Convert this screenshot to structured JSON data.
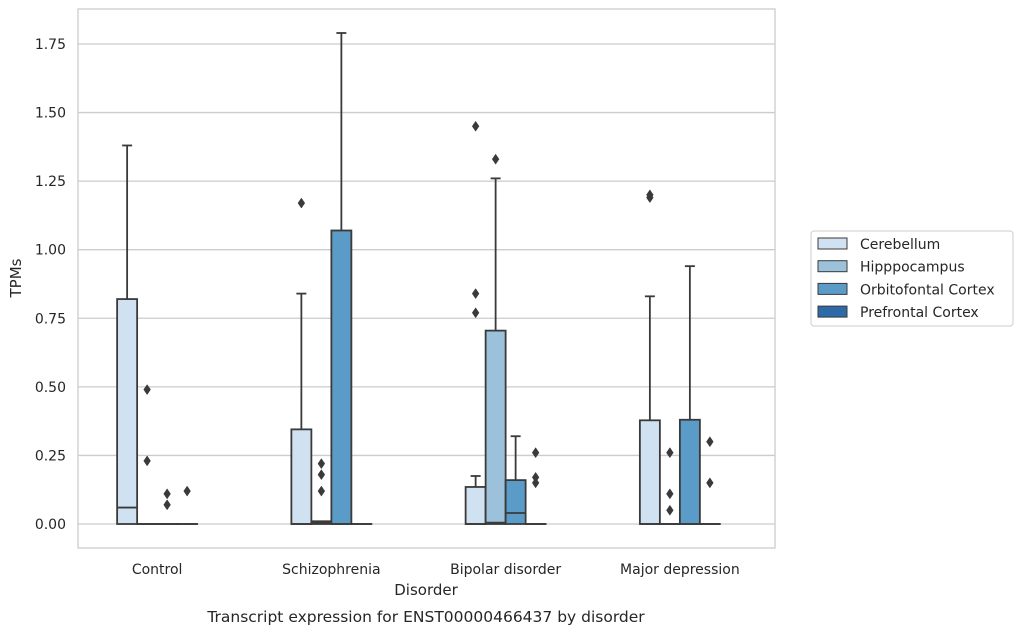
{
  "chart_data": {
    "type": "box",
    "caption": "Transcript expression for ENST00000466437 by disorder",
    "xlabel": "Disorder",
    "ylabel": "TPMs",
    "ylim": [
      -0.085,
      1.88
    ],
    "yticks": [
      0,
      0.25,
      0.5,
      0.75,
      1.0,
      1.25,
      1.5,
      1.75
    ],
    "ytick_labels": [
      "0.00",
      "0.25",
      "0.50",
      "0.75",
      "1.00",
      "1.25",
      "1.50",
      "1.75"
    ],
    "grid": true,
    "legend_position": "right",
    "categories": [
      "Control",
      "Schizophrenia",
      "Bipolar disorder",
      "Major depression"
    ],
    "series": [
      {
        "name": "Cerebellum",
        "color": "#d0e1f2",
        "boxes": [
          {
            "q1": 0,
            "median": 0.06,
            "q3": 0.82,
            "whisker_low": 0,
            "whisker_high": 1.38,
            "outliers": []
          },
          {
            "q1": 0,
            "median": 0,
            "q3": 0.345,
            "whisker_low": 0,
            "whisker_high": 0.84,
            "outliers": [
              1.17
            ]
          },
          {
            "q1": 0,
            "median": 0,
            "q3": 0.135,
            "whisker_low": 0,
            "whisker_high": 0.175,
            "outliers": [
              0.77,
              0.84,
              1.45
            ]
          },
          {
            "q1": 0,
            "median": 0,
            "q3": 0.378,
            "whisker_low": 0,
            "whisker_high": 0.83,
            "outliers": [
              1.19,
              1.2
            ]
          }
        ]
      },
      {
        "name": "Hipppocampus",
        "color": "#9cc2db",
        "boxes": [
          {
            "q1": 0,
            "median": 0,
            "q3": 0,
            "whisker_low": 0,
            "whisker_high": 0,
            "outliers": [
              0.23,
              0.49
            ]
          },
          {
            "q1": 0,
            "median": 0.005,
            "q3": 0.01,
            "whisker_low": 0,
            "whisker_high": 0.01,
            "outliers": [
              0.12,
              0.18,
              0.22
            ]
          },
          {
            "q1": 0,
            "median": 0.005,
            "q3": 0.705,
            "whisker_low": 0,
            "whisker_high": 1.26,
            "outliers": [
              1.33
            ]
          },
          {
            "q1": 0,
            "median": 0,
            "q3": 0,
            "whisker_low": 0,
            "whisker_high": 0,
            "outliers": [
              0.05,
              0.11,
              0.26
            ]
          }
        ]
      },
      {
        "name": "Orbitofontal Cortex",
        "color": "#5b9bc8",
        "boxes": [
          {
            "q1": 0,
            "median": 0,
            "q3": 0,
            "whisker_low": 0,
            "whisker_high": 0,
            "outliers": [
              0.07,
              0.11
            ]
          },
          {
            "q1": 0,
            "median": 0,
            "q3": 1.07,
            "whisker_low": 0,
            "whisker_high": 1.79,
            "outliers": []
          },
          {
            "q1": 0,
            "median": 0.04,
            "q3": 0.16,
            "whisker_low": 0,
            "whisker_high": 0.32,
            "outliers": []
          },
          {
            "q1": 0,
            "median": 0,
            "q3": 0.38,
            "whisker_low": 0,
            "whisker_high": 0.94,
            "outliers": []
          }
        ]
      },
      {
        "name": "Prefrontal Cortex",
        "color": "#2c6aa8",
        "boxes": [
          {
            "q1": 0,
            "median": 0,
            "q3": 0,
            "whisker_low": 0,
            "whisker_high": 0,
            "outliers": [
              0.12
            ]
          },
          {
            "q1": 0,
            "median": 0,
            "q3": 0,
            "whisker_low": 0,
            "whisker_high": 0,
            "outliers": []
          },
          {
            "q1": 0,
            "median": 0,
            "q3": 0,
            "whisker_low": 0,
            "whisker_high": 0,
            "outliers": [
              0.15,
              0.17,
              0.26
            ]
          },
          {
            "q1": 0,
            "median": 0,
            "q3": 0,
            "whisker_low": 0,
            "whisker_high": 0,
            "outliers": [
              0.15,
              0.3
            ]
          }
        ]
      }
    ]
  }
}
